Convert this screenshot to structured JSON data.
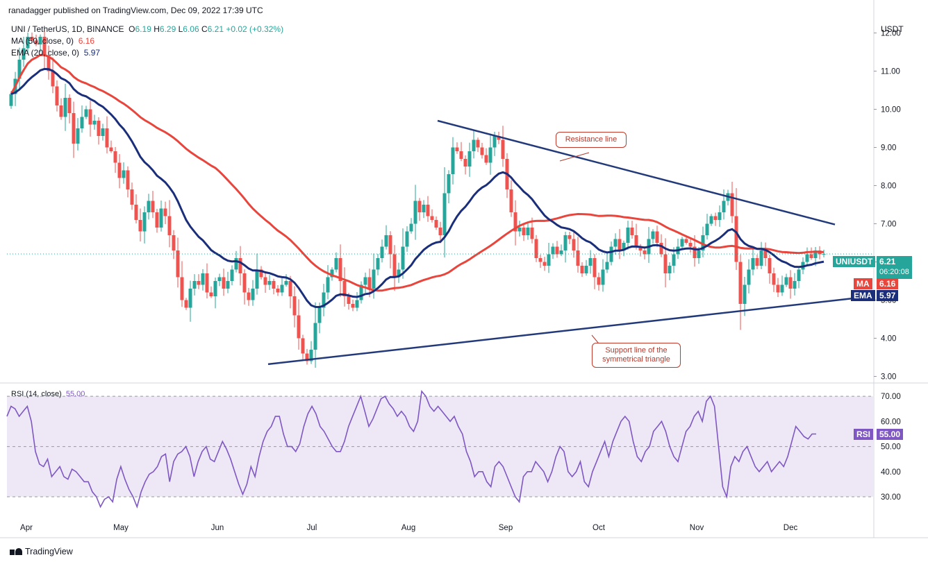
{
  "header": {
    "publisher": "ranadagger published on TradingView.com, Dec 09, 2022 17:39 UTC"
  },
  "legend": {
    "symbol": "UNI / TetherUS, 1D, BINANCE",
    "o_label": "O",
    "o": "6.19",
    "h_label": "H",
    "h": "6.29",
    "l_label": "L",
    "l": "6.06",
    "c_label": "C",
    "c": "6.21",
    "change": "+0.02 (+0.32%)",
    "ma_label": "MA (50, close, 0)",
    "ma_value": "6.16",
    "ema_label": "EMA (20, close, 0)",
    "ema_value": "5.97",
    "rsi_label": "RSI (14, close)",
    "rsi_value": "55.00"
  },
  "axis": {
    "currency": "USDT"
  },
  "badges": {
    "symbol": "UNIUSDT",
    "price": "6.21",
    "countdown": "06:20:08",
    "ma": "MA",
    "ma_value": "6.16",
    "ema": "EMA",
    "ema_value": "5.97",
    "rsi": "RSI",
    "rsi_value": "55.00"
  },
  "annotations": {
    "resistance": "Resistance line",
    "support_1": "Support line of the",
    "support_2": "symmetrical triangle"
  },
  "watermark": {
    "text": "TradingView"
  },
  "colors": {
    "up": "#26a69a",
    "down": "#ef5350",
    "ma": "#e8453c",
    "ema": "#1a2e7a",
    "rsi": "#7e57c2",
    "rsi_band": "#ede7f6",
    "trend": "#233a7a",
    "price_badge": "#26a69a"
  },
  "chart_data": {
    "type": "candlestick",
    "title": "UNI / TetherUS, 1D, BINANCE",
    "price_axis": {
      "ticks": [
        3.0,
        4.0,
        5.0,
        6.0,
        7.0,
        8.0,
        9.0,
        10.0,
        11.0,
        12.0
      ],
      "range": [
        2.9,
        12.5
      ]
    },
    "rsi_axis": {
      "ticks": [
        30.0,
        40.0,
        50.0,
        60.0,
        70.0
      ],
      "range": [
        22,
        75
      ],
      "band": [
        30,
        70
      ]
    },
    "x_ticks": [
      "Apr",
      "May",
      "Jun",
      "Jul",
      "Aug",
      "Sep",
      "Oct",
      "Nov",
      "Dec"
    ],
    "close": [
      10.4,
      10.8,
      11.3,
      11.6,
      11.9,
      11.8,
      11.7,
      11.9,
      11.4,
      11.0,
      10.6,
      10.1,
      9.8,
      10.3,
      9.9,
      9.1,
      9.5,
      9.8,
      10.0,
      9.6,
      9.7,
      9.3,
      9.5,
      9.0,
      8.9,
      8.6,
      8.2,
      8.4,
      7.9,
      7.5,
      7.1,
      6.8,
      7.3,
      7.6,
      7.3,
      6.9,
      7.4,
      7.2,
      6.7,
      6.3,
      5.6,
      5.0,
      4.8,
      5.3,
      5.5,
      5.4,
      5.7,
      5.2,
      5.1,
      5.5,
      5.6,
      5.3,
      5.5,
      5.8,
      6.1,
      5.7,
      5.2,
      5.0,
      5.3,
      5.8,
      5.6,
      5.4,
      5.5,
      5.3,
      5.2,
      5.4,
      5.5,
      5.1,
      4.6,
      4.0,
      3.6,
      3.4,
      3.7,
      4.4,
      4.8,
      5.2,
      5.6,
      5.8,
      6.1,
      5.5,
      5.1,
      4.9,
      4.8,
      5.0,
      5.4,
      5.6,
      5.3,
      5.8,
      6.1,
      6.4,
      6.7,
      6.2,
      5.6,
      5.8,
      6.4,
      6.8,
      7.0,
      7.6,
      7.3,
      7.5,
      7.2,
      7.1,
      6.9,
      6.7,
      7.8,
      8.3,
      9.0,
      8.9,
      8.7,
      8.5,
      8.9,
      9.2,
      9.0,
      8.8,
      8.6,
      9.0,
      9.3,
      9.2,
      8.7,
      7.9,
      7.3,
      6.8,
      6.9,
      6.7,
      6.9,
      6.6,
      6.1,
      6.0,
      5.9,
      6.2,
      6.4,
      6.2,
      6.3,
      6.7,
      6.6,
      6.3,
      5.9,
      5.7,
      5.9,
      6.1,
      5.6,
      5.4,
      5.8,
      6.0,
      6.4,
      6.6,
      6.3,
      6.5,
      6.9,
      6.7,
      6.4,
      6.3,
      6.2,
      6.6,
      6.8,
      6.5,
      6.2,
      5.7,
      5.9,
      6.2,
      6.4,
      6.6,
      6.5,
      6.4,
      6.1,
      6.3,
      6.7,
      7.0,
      7.2,
      7.1,
      7.3,
      7.6,
      7.8,
      7.2,
      6.0,
      4.9,
      5.4,
      5.8,
      6.1,
      5.9,
      6.3,
      6.1,
      5.7,
      5.4,
      5.2,
      5.4,
      5.6,
      5.3,
      5.5,
      5.8,
      6.0,
      6.2,
      6.1,
      6.3,
      6.2,
      6.21
    ],
    "rsi": [
      62,
      66,
      65,
      62,
      64,
      66,
      60,
      48,
      43,
      42,
      45,
      38,
      40,
      42,
      38,
      37,
      41,
      40,
      38,
      36,
      36,
      32,
      30,
      26,
      29,
      30,
      28,
      37,
      42,
      37,
      33,
      30,
      26,
      32,
      36,
      39,
      40,
      42,
      46,
      47,
      36,
      44,
      47,
      48,
      50,
      46,
      38,
      44,
      48,
      50,
      45,
      44,
      48,
      52,
      49,
      45,
      40,
      35,
      31,
      35,
      42,
      38,
      46,
      52,
      56,
      58,
      62,
      62,
      55,
      50,
      50,
      48,
      51,
      58,
      63,
      66,
      63,
      58,
      56,
      53,
      50,
      48,
      48,
      52,
      58,
      62,
      66,
      70,
      64,
      58,
      61,
      65,
      69,
      70,
      67,
      65,
      62,
      64,
      62,
      58,
      56,
      60,
      72,
      70,
      66,
      64,
      66,
      64,
      62,
      60,
      62,
      58,
      55,
      48,
      44,
      38,
      40,
      40,
      36,
      34,
      42,
      44,
      42,
      38,
      34,
      30,
      28,
      38,
      40,
      40,
      44,
      42,
      40,
      36,
      40,
      46,
      50,
      48,
      40,
      38,
      40,
      44,
      36,
      34,
      40,
      44,
      48,
      52,
      46,
      52,
      56,
      60,
      62,
      60,
      52,
      46,
      44,
      48,
      50,
      56,
      58,
      60,
      56,
      50,
      46,
      44,
      50,
      56,
      58,
      62,
      64,
      60,
      68,
      70,
      66,
      50,
      34,
      30,
      42,
      46,
      44,
      48,
      50,
      46,
      42,
      40,
      42,
      44,
      40,
      42,
      44,
      42,
      46,
      52,
      58,
      56,
      54,
      53,
      55,
      55
    ]
  }
}
